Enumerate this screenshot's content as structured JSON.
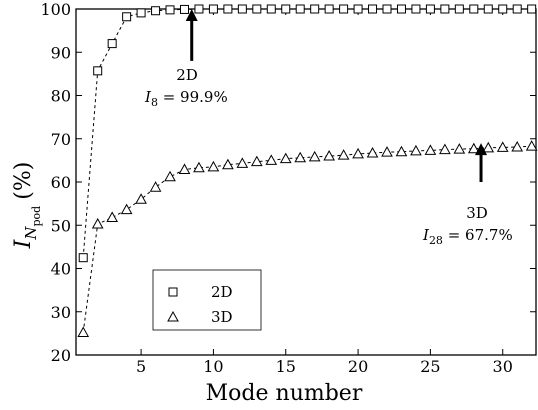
{
  "chart_data": {
    "type": "line",
    "xlabel": "Mode number",
    "ylabel": {
      "base": "I",
      "sub": "N",
      "subsub": "pod",
      "unit": "(%)"
    },
    "xlim": [
      0.5,
      32.3
    ],
    "ylim": [
      20,
      100
    ],
    "xticks": [
      5,
      10,
      15,
      20,
      25,
      30
    ],
    "yticks": [
      20,
      30,
      40,
      50,
      60,
      70,
      80,
      90,
      100
    ],
    "grid": false,
    "legend_position": "bottom-left",
    "series": [
      {
        "name": "2D",
        "marker": "square",
        "line": "dashed",
        "x": [
          1,
          2,
          3,
          4,
          5,
          6,
          7,
          8,
          9,
          10,
          11,
          12,
          13,
          14,
          15,
          16,
          17,
          18,
          19,
          20,
          21,
          22,
          23,
          24,
          25,
          26,
          27,
          28,
          29,
          30,
          31,
          32
        ],
        "y": [
          42.5,
          85.7,
          92,
          98.2,
          99.1,
          99.6,
          99.8,
          99.9,
          100,
          100,
          100,
          100,
          100,
          100,
          100,
          100,
          100,
          100,
          100,
          100,
          100,
          100,
          100,
          100,
          100,
          100,
          100,
          100,
          100,
          100,
          100,
          100
        ]
      },
      {
        "name": "3D",
        "marker": "triangle",
        "line": "dashed",
        "x": [
          1,
          2,
          3,
          4,
          5,
          6,
          7,
          8,
          9,
          10,
          11,
          12,
          13,
          14,
          15,
          16,
          17,
          18,
          19,
          20,
          21,
          22,
          23,
          24,
          25,
          26,
          27,
          28,
          29,
          30,
          31,
          32
        ],
        "y": [
          25.2,
          50.3,
          51.8,
          53.6,
          56,
          58.8,
          61.2,
          62.9,
          63.3,
          63.5,
          64,
          64.3,
          64.7,
          65,
          65.4,
          65.6,
          65.8,
          66,
          66.2,
          66.5,
          66.7,
          66.9,
          67,
          67.2,
          67.3,
          67.5,
          67.6,
          67.7,
          67.9,
          68,
          68.1,
          68.3
        ]
      }
    ],
    "annotations": [
      {
        "series": "2D",
        "label": "2D",
        "formula_base": "I",
        "formula_sub": "8",
        "formula_rest": " = 99.9%",
        "arrow_x": 8.5,
        "arrow_y_from": 88,
        "arrow_y_to": 100
      },
      {
        "series": "3D",
        "label": "3D",
        "formula_base": "I",
        "formula_sub": "28",
        "formula_rest": " = 67.7%",
        "arrow_x": 28.5,
        "arrow_y_from": 60,
        "arrow_y_to": 69
      }
    ]
  }
}
